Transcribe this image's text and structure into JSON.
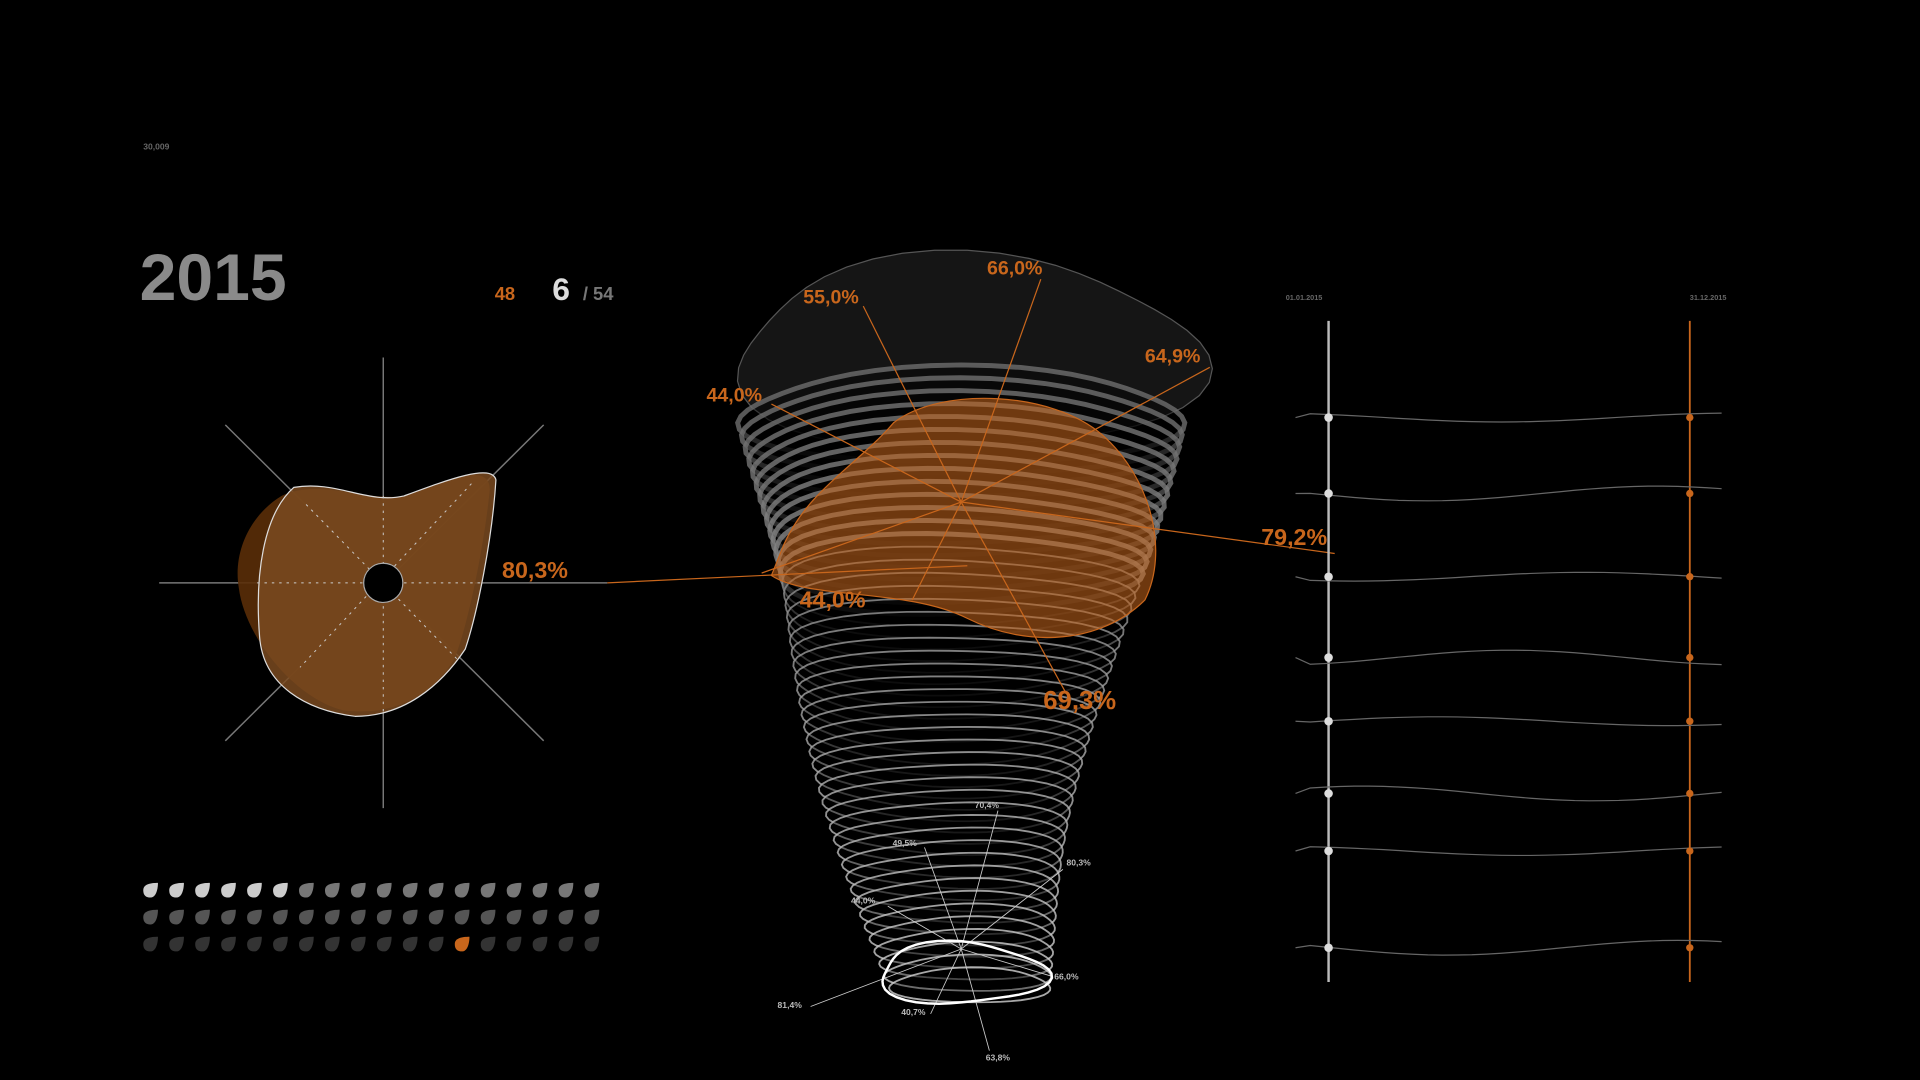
{
  "header": {
    "code": "30,009",
    "year": "2015",
    "current": "48",
    "page": "6",
    "total": "/ 54"
  },
  "left_radial": {
    "label": "80,3%"
  },
  "tower": {
    "top_labels": [
      "55,0%",
      "66,0%",
      "64,9%",
      "44,0%",
      "79,2%",
      "44,0%",
      "69,3%"
    ],
    "bottom_labels": [
      "70,4%",
      "49,5%",
      "80,3%",
      "44,0%",
      "66,0%",
      "81,4%",
      "40,7%",
      "63,8%"
    ]
  },
  "timeline": {
    "start": "01.01.2015",
    "end": "31.12.2015"
  }
}
